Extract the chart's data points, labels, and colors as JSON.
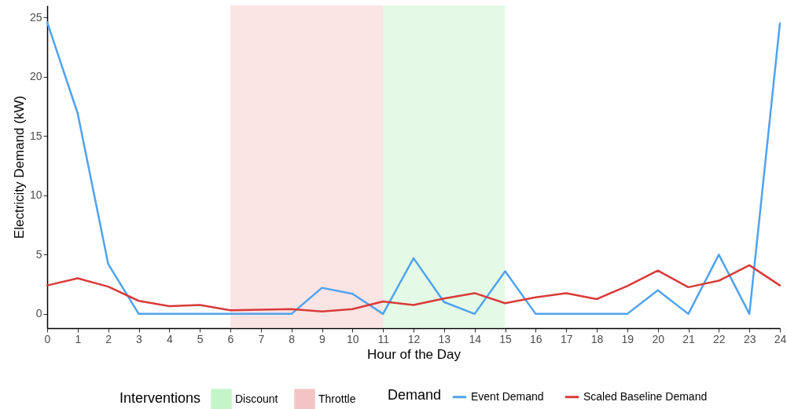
{
  "chart_data": {
    "type": "line",
    "xlabel": "Hour of the Day",
    "ylabel": "Electricity Demand (kW)",
    "legend_title": [
      "Interventions",
      "Demand"
    ],
    "x": [
      0,
      1,
      2,
      3,
      4,
      5,
      6,
      7,
      8,
      9,
      10,
      11,
      12,
      13,
      14,
      15,
      16,
      17,
      18,
      19,
      20,
      21,
      22,
      23,
      24
    ],
    "series": [
      {
        "name": "Event Demand",
        "color": "#4fa3ef",
        "values": [
          24.6,
          16.9,
          4.2,
          0,
          0,
          0,
          0,
          0,
          0,
          2.2,
          1.7,
          0,
          4.7,
          1.0,
          0,
          3.6,
          0,
          0,
          0,
          0,
          2.0,
          0,
          5.0,
          0,
          24.5
        ]
      },
      {
        "name": "Scaled Baseline Demand",
        "color": "#d93a3a",
        "values": [
          2.4,
          3.0,
          2.3,
          1.1,
          0.65,
          0.75,
          0.3,
          0.35,
          0.4,
          0.2,
          0.4,
          1.05,
          0.75,
          1.3,
          1.75,
          0.9,
          1.4,
          1.75,
          1.25,
          2.35,
          3.65,
          2.25,
          2.8,
          4.1,
          2.4
        ]
      }
    ],
    "bands": [
      {
        "axis": "x",
        "from": 11,
        "to": 15,
        "label": "Discount",
        "color": "#c3f5c8"
      },
      {
        "axis": "x",
        "from": 6,
        "to": 11,
        "label": "Throttle",
        "color": "#f4c4c4"
      }
    ],
    "xlim": [
      0,
      24
    ],
    "xticks": [
      0,
      1,
      2,
      3,
      4,
      5,
      6,
      7,
      8,
      9,
      10,
      11,
      12,
      13,
      14,
      15,
      16,
      17,
      18,
      19,
      20,
      21,
      22,
      23,
      24
    ],
    "ylim": [
      -1.2,
      26
    ],
    "yticks": [
      0,
      5,
      10,
      15,
      20,
      25
    ],
    "grid": false,
    "legend": "bottom",
    "line_style": "solid"
  }
}
